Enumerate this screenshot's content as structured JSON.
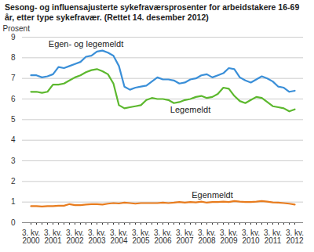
{
  "chart_data": {
    "type": "line",
    "title": "Sesong- og influensajusterte sykefraværsprosenter for arbeidstakere 16-69 år, etter type sykefravær. (Rettet 14. desember 2012)",
    "ylabel": "Prosent",
    "categories": [
      "3. kv.\n2000",
      null,
      null,
      null,
      "3. kv.\n2001",
      null,
      null,
      null,
      "3. kv.\n2002",
      null,
      null,
      null,
      "3. kv.\n2003",
      null,
      null,
      null,
      "3. kv.\n2004",
      null,
      null,
      null,
      "3. kv.\n2005",
      null,
      null,
      null,
      "3. kv.\n2006",
      null,
      null,
      null,
      "3. kv.\n2007",
      null,
      null,
      null,
      "3. kv.\n2008",
      null,
      null,
      null,
      "3. kv.\n2009",
      null,
      null,
      null,
      "3. kv.\n2010",
      null,
      null,
      null,
      "3. kv.\n2011",
      null,
      null,
      null,
      "3. kv.\n2012"
    ],
    "series": [
      {
        "name": "Egen- og legemeldt",
        "color": "#3a8fd8",
        "values": [
          7.15,
          7.15,
          7.05,
          7.1,
          7.2,
          7.55,
          7.5,
          7.6,
          7.7,
          7.8,
          8.05,
          8.1,
          8.3,
          8.35,
          8.25,
          8.1,
          7.6,
          6.6,
          6.45,
          6.55,
          6.6,
          6.65,
          6.85,
          7.05,
          6.95,
          6.95,
          6.9,
          6.75,
          6.8,
          6.95,
          7.0,
          7.15,
          7.2,
          7.05,
          7.15,
          7.25,
          7.5,
          7.45,
          7.05,
          6.9,
          6.8,
          6.95,
          7.1,
          7.0,
          6.85,
          6.6,
          6.55,
          6.35,
          6.4
        ]
      },
      {
        "name": "Legemeldt",
        "color": "#5cb82e",
        "values": [
          6.35,
          6.35,
          6.3,
          6.35,
          6.7,
          6.7,
          6.75,
          6.9,
          7.05,
          7.15,
          7.3,
          7.4,
          7.45,
          7.35,
          7.2,
          6.75,
          5.7,
          5.55,
          5.6,
          5.65,
          5.7,
          5.95,
          6.05,
          6.0,
          6.0,
          5.95,
          5.8,
          5.85,
          5.95,
          6.0,
          6.1,
          6.15,
          6.05,
          6.1,
          6.25,
          6.55,
          6.5,
          6.15,
          5.9,
          5.8,
          5.95,
          6.1,
          6.05,
          5.85,
          5.65,
          5.6,
          5.55,
          5.4,
          5.5
        ]
      },
      {
        "name": "Egenmeldt",
        "color": "#e87c1e",
        "values": [
          0.8,
          0.8,
          0.78,
          0.8,
          0.8,
          0.82,
          0.82,
          0.9,
          0.85,
          0.85,
          0.88,
          0.9,
          0.9,
          0.88,
          0.92,
          0.95,
          0.93,
          0.97,
          0.95,
          0.92,
          0.95,
          0.95,
          0.95,
          0.95,
          0.97,
          0.95,
          0.97,
          1.0,
          0.97,
          1.0,
          0.98,
          1.02,
          0.97,
          1.0,
          1.0,
          1.02,
          1.0,
          1.05,
          1.02,
          1.0,
          1.0,
          1.02,
          1.05,
          1.02,
          0.98,
          0.97,
          0.95,
          0.92,
          0.88
        ]
      }
    ],
    "ylim": [
      0,
      9
    ],
    "yticks": [
      0,
      1,
      2,
      3,
      4,
      5,
      6,
      7,
      8,
      9
    ],
    "grid": true
  }
}
